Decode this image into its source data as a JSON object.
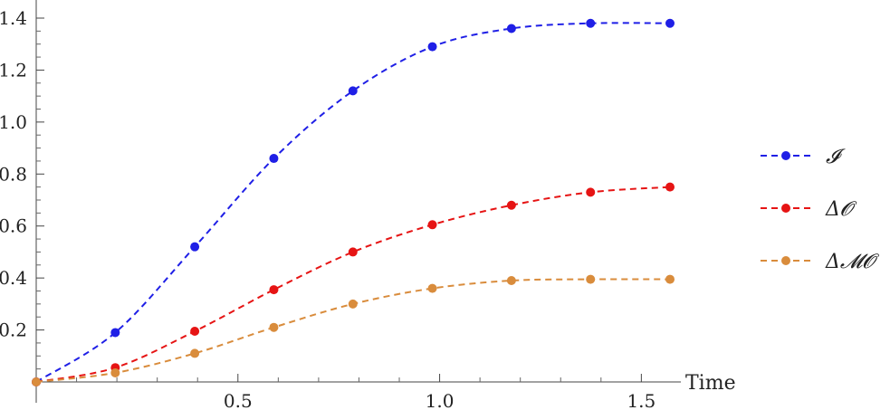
{
  "chart_data": {
    "type": "line",
    "xlabel": "Time",
    "ylabel": "",
    "xlim": [
      0,
      1.65
    ],
    "ylim": [
      0,
      1.45
    ],
    "xticks": [
      0.5,
      1.0,
      1.5
    ],
    "xtick_labels": [
      "0.5",
      "1.0",
      "1.5"
    ],
    "yticks": [
      0.2,
      0.4,
      0.6,
      0.8,
      1.0,
      1.2,
      1.4
    ],
    "ytick_labels": [
      "0.2",
      "0.4",
      "0.6",
      "0.8",
      "1.0",
      "1.2",
      "1.4"
    ],
    "grid": false,
    "legend": "right",
    "line_style": "dashed",
    "series": [
      {
        "name": "𝓘",
        "color": "#1f1fe6",
        "x": [
          0,
          0.196,
          0.393,
          0.589,
          0.785,
          0.982,
          1.178,
          1.374,
          1.571
        ],
        "y": [
          0,
          0.19,
          0.52,
          0.86,
          1.12,
          1.29,
          1.36,
          1.38,
          1.38
        ]
      },
      {
        "name": "Δ𝓞",
        "color": "#e61414",
        "x": [
          0,
          0.196,
          0.393,
          0.589,
          0.785,
          0.982,
          1.178,
          1.374,
          1.571
        ],
        "y": [
          0,
          0.055,
          0.195,
          0.355,
          0.5,
          0.605,
          0.68,
          0.73,
          0.75
        ]
      },
      {
        "name": "Δ𝓜𝓞",
        "color": "#d98c3c",
        "x": [
          0,
          0.196,
          0.393,
          0.589,
          0.785,
          0.982,
          1.178,
          1.374,
          1.571
        ],
        "y": [
          0,
          0.035,
          0.11,
          0.21,
          0.3,
          0.36,
          0.39,
          0.395,
          0.395
        ]
      }
    ]
  }
}
